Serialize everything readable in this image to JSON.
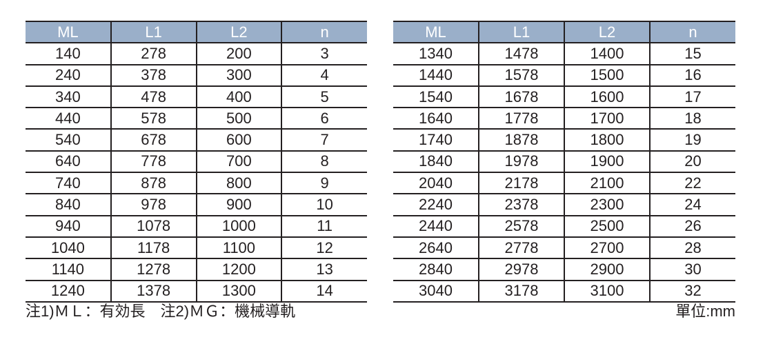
{
  "headers": [
    "ML",
    "L1",
    "L2",
    "n"
  ],
  "left_rows": [
    [
      "140",
      "278",
      "200",
      "3"
    ],
    [
      "240",
      "378",
      "300",
      "4"
    ],
    [
      "340",
      "478",
      "400",
      "5"
    ],
    [
      "440",
      "578",
      "500",
      "6"
    ],
    [
      "540",
      "678",
      "600",
      "7"
    ],
    [
      "640",
      "778",
      "700",
      "8"
    ],
    [
      "740",
      "878",
      "800",
      "9"
    ],
    [
      "840",
      "978",
      "900",
      "10"
    ],
    [
      "940",
      "1078",
      "1000",
      "11"
    ],
    [
      "1040",
      "1178",
      "1100",
      "12"
    ],
    [
      "1140",
      "1278",
      "1200",
      "13"
    ],
    [
      "1240",
      "1378",
      "1300",
      "14"
    ]
  ],
  "right_rows": [
    [
      "1340",
      "1478",
      "1400",
      "15"
    ],
    [
      "1440",
      "1578",
      "1500",
      "16"
    ],
    [
      "1540",
      "1678",
      "1600",
      "17"
    ],
    [
      "1640",
      "1778",
      "1700",
      "18"
    ],
    [
      "1740",
      "1878",
      "1800",
      "19"
    ],
    [
      "1840",
      "1978",
      "1900",
      "20"
    ],
    [
      "2040",
      "2178",
      "2100",
      "22"
    ],
    [
      "2240",
      "2378",
      "2300",
      "24"
    ],
    [
      "2440",
      "2578",
      "2500",
      "26"
    ],
    [
      "2640",
      "2778",
      "2700",
      "28"
    ],
    [
      "2840",
      "2978",
      "2900",
      "30"
    ],
    [
      "3040",
      "3178",
      "3100",
      "32"
    ]
  ],
  "notes": "注1)ＭＬ：有効長　注2)ＭＧ：機械導軌",
  "unit": "單位:mm",
  "colors": {
    "header_bg": "#9aafc9",
    "header_text": "#ffffff",
    "text": "#231f20"
  }
}
